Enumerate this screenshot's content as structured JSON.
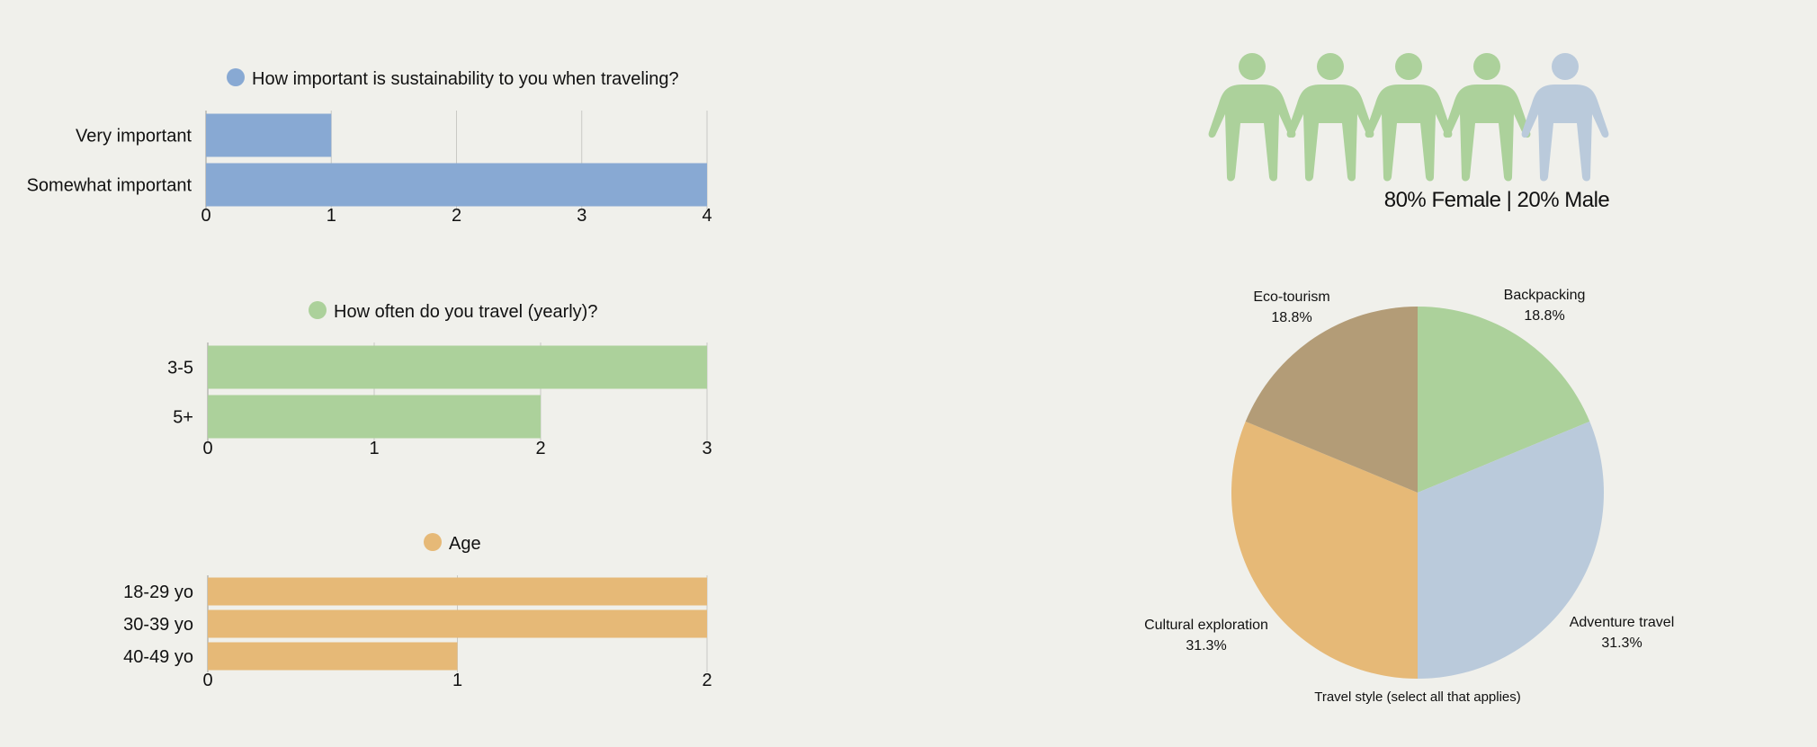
{
  "chart_data": [
    {
      "type": "bar",
      "orientation": "horizontal",
      "title": "How important is sustainability to you when traveling?",
      "categories": [
        "Very important",
        "Somewhat important"
      ],
      "series": [
        {
          "name": "How important is sustainability to you when traveling?",
          "values": [
            1,
            4
          ]
        }
      ],
      "xlim": [
        0,
        4
      ],
      "xticks": [
        "0",
        "1",
        "2",
        "3",
        "4"
      ],
      "grid": true,
      "legend": "top",
      "color": "#88a9d3"
    },
    {
      "type": "bar",
      "orientation": "horizontal",
      "title": "How often do you travel (yearly)?",
      "categories": [
        "3-5",
        "5+"
      ],
      "series": [
        {
          "name": "How often do you travel (yearly)?",
          "values": [
            3,
            2
          ]
        }
      ],
      "xlim": [
        0,
        3
      ],
      "xticks": [
        "0",
        "1",
        "2",
        "3"
      ],
      "grid": true,
      "legend": "top",
      "color": "#acd19b"
    },
    {
      "type": "bar",
      "orientation": "horizontal",
      "title": "Age",
      "categories": [
        "18-29 yo",
        "30-39 yo",
        "40-49 yo"
      ],
      "series": [
        {
          "name": "Age",
          "values": [
            2,
            2,
            1
          ]
        }
      ],
      "xlim": [
        0,
        2
      ],
      "xticks": [
        "0",
        "1",
        "2"
      ],
      "grid": true,
      "legend": "top",
      "color": "#e6b977"
    },
    {
      "type": "pie",
      "title": "Travel style (select all that applies)",
      "slices": [
        {
          "label": "Backpacking",
          "percent": "18.8%",
          "value": 18.8,
          "color": "#acd19b"
        },
        {
          "label": "Adventure travel",
          "percent": "31.3%",
          "value": 31.3,
          "color": "#bacadb"
        },
        {
          "label": "Cultural exploration",
          "percent": "31.3%",
          "value": 31.3,
          "color": "#e6b977"
        },
        {
          "label": "Eco-tourism",
          "percent": "18.8%",
          "value": 18.8,
          "color": "#b39c77"
        }
      ]
    }
  ],
  "gender": {
    "caption": "80% Female | 20% Male",
    "female_share": 0.8,
    "icon_count": 5,
    "female_color": "#acd19b",
    "male_color": "#bacadb"
  }
}
